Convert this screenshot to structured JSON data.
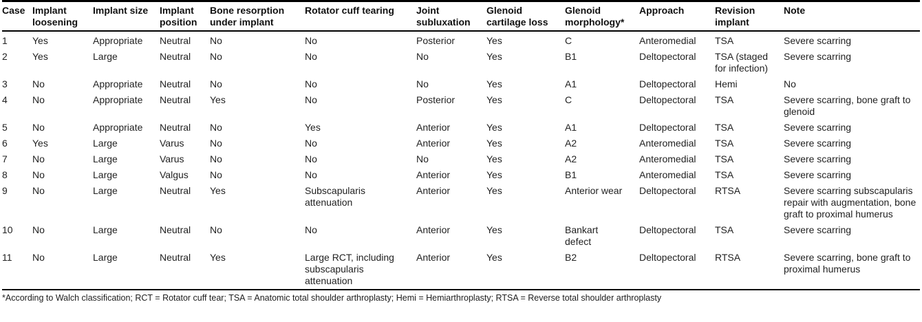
{
  "colors": {
    "background": "#ffffff",
    "text": "#1c1c1c",
    "rule": "#000000"
  },
  "table": {
    "columns": [
      "Case",
      "Implant loosening",
      "Implant size",
      "Implant position",
      "Bone resorption under implant",
      "Rotator cuff tearing",
      "Joint subluxation",
      "Glenoid cartilage loss",
      "Glenoid morphology*",
      "Approach",
      "Revision implant",
      "Note"
    ],
    "rows": [
      [
        "1",
        "Yes",
        "Appropriate",
        "Neutral",
        "No",
        "No",
        "Posterior",
        "Yes",
        "C",
        "Anteromedial",
        "TSA",
        "Severe scarring"
      ],
      [
        "2",
        "Yes",
        "Large",
        "Neutral",
        "No",
        "No",
        "No",
        "Yes",
        "B1",
        "Deltopectoral",
        "TSA (staged for infection)",
        "Severe scarring"
      ],
      [
        "3",
        "No",
        "Appropriate",
        "Neutral",
        "No",
        "No",
        "No",
        "Yes",
        "A1",
        "Deltopectoral",
        "Hemi",
        "No"
      ],
      [
        "4",
        "No",
        "Appropriate",
        "Neutral",
        "Yes",
        "No",
        "Posterior",
        "Yes",
        "C",
        "Deltopectoral",
        "TSA",
        "Severe scarring, bone graft to glenoid"
      ],
      [
        "5",
        "No",
        "Appropriate",
        "Neutral",
        "No",
        "Yes",
        "Anterior",
        "Yes",
        "A1",
        "Deltopectoral",
        "TSA",
        "Severe scarring"
      ],
      [
        "6",
        "Yes",
        "Large",
        "Varus",
        "No",
        "No",
        "Anterior",
        "Yes",
        "A2",
        "Anteromedial",
        "TSA",
        "Severe scarring"
      ],
      [
        "7",
        "No",
        "Large",
        "Varus",
        "No",
        "No",
        "No",
        "Yes",
        "A2",
        "Anteromedial",
        "TSA",
        "Severe scarring"
      ],
      [
        "8",
        "No",
        "Large",
        "Valgus",
        "No",
        "No",
        "Anterior",
        "Yes",
        "B1",
        "Anteromedial",
        "TSA",
        "Severe scarring"
      ],
      [
        "9",
        "No",
        "Large",
        "Neutral",
        "Yes",
        "Subscapularis attenuation",
        "Anterior",
        "Yes",
        "Anterior wear",
        "Deltopectoral",
        "RTSA",
        "Severe scarring subscapularis repair with augmentation, bone graft to proximal humerus"
      ],
      [
        "10",
        "No",
        "Large",
        "Neutral",
        "No",
        "No",
        "Anterior",
        "Yes",
        "Bankart defect",
        "Deltopectoral",
        "TSA",
        "Severe scarring"
      ],
      [
        "11",
        "No",
        "Large",
        "Neutral",
        "Yes",
        "Large RCT, including subscapularis attenuation",
        "Anterior",
        "Yes",
        "B2",
        "Deltopectoral",
        "RTSA",
        "Severe scarring, bone graft to proximal humerus"
      ]
    ],
    "footnote": "*According to Walch classification; RCT = Rotator cuff tear; TSA = Anatomic total shoulder arthroplasty; Hemi = Hemiarthroplasty; RTSA = Reverse total shoulder arthroplasty"
  }
}
